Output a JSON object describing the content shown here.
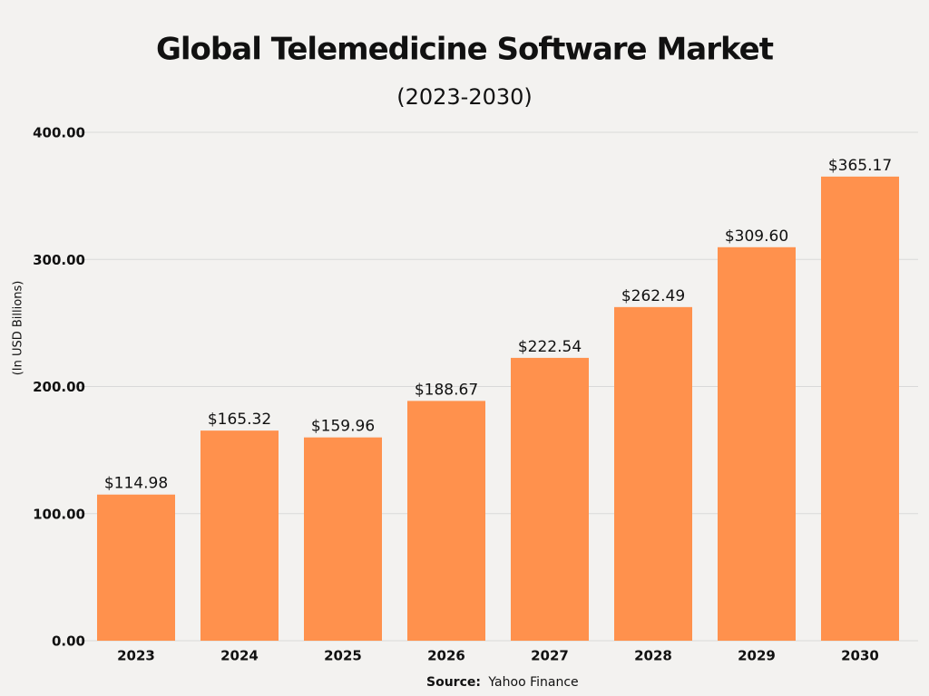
{
  "chart_data": {
    "type": "bar",
    "title": "Global Telemedicine Software Market",
    "subtitle": "(2023-2030)",
    "y_label": "(In USD Billions)",
    "source_label": "Source:",
    "source": "Yahoo Finance",
    "categories": [
      "2023",
      "2024",
      "2025",
      "2026",
      "2027",
      "2028",
      "2029",
      "2030"
    ],
    "values": [
      114.98,
      165.32,
      159.96,
      188.67,
      222.54,
      262.49,
      309.6,
      365.17
    ],
    "value_labels": [
      "$114.98",
      "$165.32",
      "$159.96",
      "$188.67",
      "$222.54",
      "$262.49",
      "$309.60",
      "$365.17"
    ],
    "color": "#ff914d",
    "ylim": [
      0,
      400
    ],
    "yticks": [
      {
        "value": 0,
        "label": "0.00"
      },
      {
        "value": 100,
        "label": "100.00"
      },
      {
        "value": 200,
        "label": "200.00"
      },
      {
        "value": 300,
        "label": "300.00"
      },
      {
        "value": 400,
        "label": "400.00"
      }
    ],
    "grid": true
  }
}
